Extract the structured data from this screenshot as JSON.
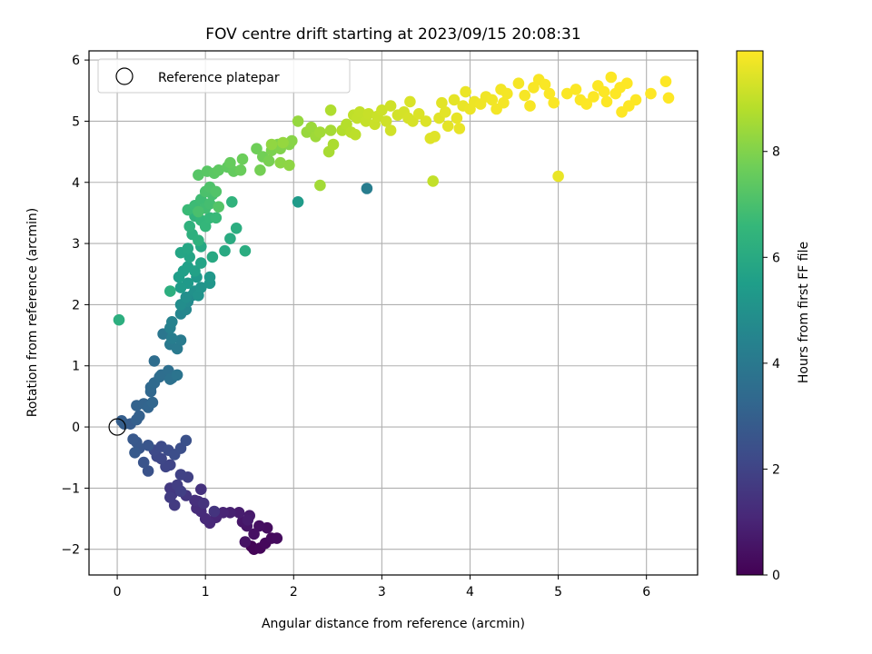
{
  "chart_data": {
    "type": "scatter",
    "title": "FOV centre drift starting at 2023/09/15 20:08:31",
    "xlabel": "Angular distance from reference (arcmin)",
    "ylabel": "Rotation from reference (arcmin)",
    "xlim": [
      -0.32,
      6.58
    ],
    "ylim": [
      -2.42,
      6.15
    ],
    "xticks": [
      0,
      1,
      2,
      3,
      4,
      5,
      6
    ],
    "xtick_labels": [
      "0",
      "1",
      "2",
      "3",
      "4",
      "5",
      "6"
    ],
    "yticks": [
      -2,
      -1,
      0,
      1,
      2,
      3,
      4,
      5,
      6
    ],
    "ytick_labels": [
      "−2",
      "−1",
      "0",
      "1",
      "2",
      "3",
      "4",
      "5",
      "6"
    ],
    "grid": true,
    "legend": {
      "placement": "top-left",
      "entries": [
        "Reference platepar"
      ]
    },
    "reference_point": {
      "x": 0,
      "y": 0,
      "marker": "open-circle"
    },
    "colorbar": {
      "label": "Hours from first FF file",
      "colormap": "viridis",
      "range": [
        0,
        9.9
      ],
      "ticks": [
        0,
        2,
        4,
        6,
        8
      ],
      "tick_labels": [
        "0",
        "2",
        "4",
        "6",
        "8"
      ]
    },
    "series": [
      {
        "points": [
          [
            1.52,
            -1.95,
            0.05
          ],
          [
            1.55,
            -2.0,
            0.1
          ],
          [
            1.62,
            -1.98,
            0.15
          ],
          [
            1.68,
            -1.9,
            0.2
          ],
          [
            1.75,
            -1.82,
            0.25
          ],
          [
            1.81,
            -1.82,
            0.3
          ],
          [
            1.7,
            -1.65,
            0.35
          ],
          [
            1.61,
            -1.62,
            0.4
          ],
          [
            1.55,
            -1.75,
            0.45
          ],
          [
            1.45,
            -1.88,
            0.5
          ],
          [
            1.47,
            -1.62,
            0.55
          ],
          [
            1.42,
            -1.55,
            0.6
          ],
          [
            1.5,
            -1.45,
            0.7
          ],
          [
            1.48,
            -1.52,
            0.75
          ],
          [
            1.38,
            -1.4,
            0.8
          ],
          [
            1.28,
            -1.4,
            0.9
          ],
          [
            1.2,
            -1.4,
            1.0
          ],
          [
            1.12,
            -1.48,
            1.05
          ],
          [
            1.05,
            -1.57,
            1.1
          ],
          [
            1.0,
            -1.5,
            1.15
          ],
          [
            0.95,
            -1.38,
            1.2
          ],
          [
            0.9,
            -1.33,
            1.25
          ],
          [
            0.92,
            -1.22,
            1.3
          ],
          [
            0.88,
            -1.2,
            1.35
          ],
          [
            0.95,
            -1.02,
            1.4
          ],
          [
            0.98,
            -1.25,
            1.45
          ],
          [
            1.1,
            -1.38,
            1.5
          ],
          [
            0.78,
            -1.12,
            1.55
          ],
          [
            0.62,
            -1.1,
            1.6
          ],
          [
            0.6,
            -1.0,
            1.65
          ],
          [
            0.65,
            -1.28,
            1.7
          ],
          [
            0.6,
            -1.15,
            1.75
          ],
          [
            0.68,
            -0.95,
            1.8
          ],
          [
            0.72,
            -1.05,
            1.85
          ],
          [
            0.8,
            -0.82,
            1.9
          ],
          [
            0.72,
            -0.78,
            1.95
          ],
          [
            0.6,
            -0.62,
            2.0
          ],
          [
            0.55,
            -0.65,
            2.05
          ],
          [
            0.5,
            -0.52,
            2.1
          ],
          [
            0.45,
            -0.48,
            2.15
          ],
          [
            0.42,
            -0.38,
            2.2
          ],
          [
            0.5,
            -0.32,
            2.25
          ],
          [
            0.58,
            -0.38,
            2.3
          ],
          [
            0.65,
            -0.45,
            2.35
          ],
          [
            0.72,
            -0.35,
            2.4
          ],
          [
            0.78,
            -0.22,
            2.45
          ],
          [
            0.35,
            -0.72,
            2.5
          ],
          [
            0.3,
            -0.58,
            2.55
          ],
          [
            0.35,
            -0.3,
            2.6
          ],
          [
            0.25,
            -0.35,
            2.65
          ],
          [
            0.22,
            -0.25,
            2.7
          ],
          [
            0.18,
            -0.2,
            2.75
          ],
          [
            0.2,
            -0.42,
            2.8
          ],
          [
            0.15,
            0.05,
            2.85
          ],
          [
            0.08,
            0.05,
            2.9
          ],
          [
            0.05,
            0.1,
            2.95
          ],
          [
            0.22,
            0.12,
            3.0
          ],
          [
            0.25,
            0.18,
            3.05
          ],
          [
            0.22,
            0.35,
            3.1
          ],
          [
            0.3,
            0.38,
            3.15
          ],
          [
            0.35,
            0.32,
            3.2
          ],
          [
            0.4,
            0.4,
            3.25
          ],
          [
            0.38,
            0.58,
            3.3
          ],
          [
            0.38,
            0.65,
            3.35
          ],
          [
            0.42,
            0.72,
            3.4
          ],
          [
            0.48,
            0.82,
            3.45
          ],
          [
            0.42,
            1.08,
            3.5
          ],
          [
            0.5,
            0.85,
            3.55
          ],
          [
            0.58,
            0.92,
            3.6
          ],
          [
            0.62,
            0.8,
            3.65
          ],
          [
            0.6,
            0.78,
            3.7
          ],
          [
            0.68,
            0.85,
            3.8
          ],
          [
            0.52,
            1.52,
            3.9
          ],
          [
            0.6,
            1.35,
            4.0
          ],
          [
            0.68,
            1.28,
            4.05
          ],
          [
            0.72,
            1.42,
            4.1
          ],
          [
            0.62,
            1.45,
            4.2
          ],
          [
            0.6,
            1.62,
            4.3
          ],
          [
            0.62,
            1.72,
            4.4
          ],
          [
            0.72,
            1.85,
            4.5
          ],
          [
            0.78,
            1.92,
            4.6
          ],
          [
            0.8,
            2.05,
            4.7
          ],
          [
            0.85,
            2.15,
            4.8
          ],
          [
            0.72,
            2.0,
            4.85
          ],
          [
            0.78,
            2.12,
            4.9
          ],
          [
            0.88,
            2.22,
            5.0
          ],
          [
            0.92,
            2.15,
            5.05
          ],
          [
            0.95,
            2.28,
            5.1
          ],
          [
            1.05,
            2.35,
            5.2
          ],
          [
            1.05,
            2.45,
            5.25
          ],
          [
            0.9,
            2.45,
            5.3
          ],
          [
            0.8,
            2.35,
            5.35
          ],
          [
            0.72,
            2.28,
            5.4
          ],
          [
            0.7,
            2.45,
            5.5
          ],
          [
            0.75,
            2.55,
            5.55
          ],
          [
            0.8,
            2.62,
            5.6
          ],
          [
            0.88,
            2.55,
            5.65
          ],
          [
            0.95,
            2.68,
            5.7
          ],
          [
            0.82,
            2.78,
            5.75
          ],
          [
            0.72,
            2.85,
            5.8
          ],
          [
            0.8,
            2.92,
            5.85
          ],
          [
            0.95,
            2.95,
            5.9
          ],
          [
            1.08,
            2.78,
            5.95
          ],
          [
            1.22,
            2.88,
            6.0
          ],
          [
            1.28,
            3.08,
            6.05
          ],
          [
            1.45,
            2.88,
            6.1
          ],
          [
            1.35,
            3.25,
            6.15
          ],
          [
            0.6,
            2.22,
            6.2
          ],
          [
            0.02,
            1.75,
            6.2
          ],
          [
            0.85,
            3.15,
            6.25
          ],
          [
            0.92,
            3.05,
            6.3
          ],
          [
            0.82,
            3.28,
            6.35
          ],
          [
            0.88,
            3.45,
            6.4
          ],
          [
            0.95,
            3.38,
            6.5
          ],
          [
            1.0,
            3.28,
            6.55
          ],
          [
            1.05,
            3.42,
            6.6
          ],
          [
            1.12,
            3.42,
            6.65
          ],
          [
            0.8,
            3.55,
            6.7
          ],
          [
            0.88,
            3.62,
            6.75
          ],
          [
            0.95,
            3.72,
            6.8
          ],
          [
            1.0,
            3.58,
            6.85
          ],
          [
            1.05,
            3.65,
            6.9
          ],
          [
            1.08,
            3.8,
            6.95
          ],
          [
            0.92,
            3.52,
            7.0
          ],
          [
            1.0,
            3.85,
            7.05
          ],
          [
            1.05,
            3.92,
            7.1
          ],
          [
            1.12,
            3.85,
            7.15
          ],
          [
            2.05,
            3.68,
            5.4
          ],
          [
            1.3,
            3.68,
            6.4
          ],
          [
            2.83,
            3.9,
            4.2
          ],
          [
            1.15,
            3.6,
            7.2
          ],
          [
            0.92,
            4.12,
            7.25
          ],
          [
            1.02,
            4.18,
            7.3
          ],
          [
            1.1,
            4.15,
            7.35
          ],
          [
            1.15,
            4.2,
            7.4
          ],
          [
            1.25,
            4.25,
            7.45
          ],
          [
            1.32,
            4.18,
            7.5
          ],
          [
            1.28,
            4.32,
            7.55
          ],
          [
            1.4,
            4.2,
            7.6
          ],
          [
            1.42,
            4.38,
            7.65
          ],
          [
            1.58,
            4.55,
            7.7
          ],
          [
            1.65,
            4.42,
            7.75
          ],
          [
            1.62,
            4.2,
            7.8
          ],
          [
            1.72,
            4.35,
            7.85
          ],
          [
            1.75,
            4.52,
            7.9
          ],
          [
            1.82,
            4.62,
            7.95
          ],
          [
            1.85,
            4.55,
            8.0
          ],
          [
            1.95,
            4.62,
            8.05
          ],
          [
            1.98,
            4.68,
            8.1
          ],
          [
            1.85,
            4.32,
            8.15
          ],
          [
            1.95,
            4.28,
            8.2
          ],
          [
            1.75,
            4.62,
            8.25
          ],
          [
            1.88,
            4.65,
            8.3
          ],
          [
            2.05,
            5.0,
            8.3
          ],
          [
            2.15,
            4.82,
            8.35
          ],
          [
            2.2,
            4.9,
            8.4
          ],
          [
            2.25,
            4.75,
            8.45
          ],
          [
            2.3,
            4.82,
            8.5
          ],
          [
            2.42,
            4.85,
            8.55
          ],
          [
            2.4,
            4.5,
            8.6
          ],
          [
            2.45,
            4.62,
            8.65
          ],
          [
            2.3,
            3.95,
            8.5
          ],
          [
            2.42,
            5.18,
            8.7
          ],
          [
            2.55,
            4.85,
            8.75
          ],
          [
            2.6,
            4.95,
            8.8
          ],
          [
            2.65,
            4.82,
            8.85
          ],
          [
            2.7,
            4.78,
            8.9
          ],
          [
            2.68,
            5.1,
            8.95
          ],
          [
            2.72,
            5.05,
            9.0
          ],
          [
            2.75,
            5.15,
            9.02
          ],
          [
            2.82,
            5.0,
            9.05
          ],
          [
            2.85,
            5.12,
            9.08
          ],
          [
            2.92,
            4.95,
            9.1
          ],
          [
            2.95,
            5.08,
            9.12
          ],
          [
            3.0,
            5.18,
            9.15
          ],
          [
            3.05,
            5.0,
            9.18
          ],
          [
            3.1,
            5.25,
            9.2
          ],
          [
            3.1,
            4.85,
            9.22
          ],
          [
            3.18,
            5.1,
            9.25
          ],
          [
            3.25,
            5.15,
            9.28
          ],
          [
            3.3,
            5.05,
            9.3
          ],
          [
            3.35,
            5.0,
            9.32
          ],
          [
            3.32,
            5.32,
            9.35
          ],
          [
            3.42,
            5.12,
            9.38
          ],
          [
            3.5,
            5.0,
            9.4
          ],
          [
            3.55,
            4.72,
            9.42
          ],
          [
            3.6,
            4.75,
            9.44
          ],
          [
            3.58,
            4.02,
            9.0
          ],
          [
            3.65,
            5.05,
            9.46
          ],
          [
            3.68,
            5.3,
            9.48
          ],
          [
            3.72,
            5.15,
            9.5
          ],
          [
            3.75,
            4.92,
            9.52
          ],
          [
            3.82,
            5.35,
            9.54
          ],
          [
            3.85,
            5.05,
            9.56
          ],
          [
            3.88,
            4.88,
            9.58
          ],
          [
            3.92,
            5.25,
            9.6
          ],
          [
            3.95,
            5.48,
            9.62
          ],
          [
            4.0,
            5.2,
            9.64
          ],
          [
            4.05,
            5.32,
            9.66
          ],
          [
            4.12,
            5.28,
            9.68
          ],
          [
            4.18,
            5.4,
            9.7
          ],
          [
            4.25,
            5.35,
            9.72
          ],
          [
            4.3,
            5.2,
            9.74
          ],
          [
            4.35,
            5.52,
            9.75
          ],
          [
            4.38,
            5.3,
            9.76
          ],
          [
            4.42,
            5.45,
            9.77
          ],
          [
            4.55,
            5.62,
            9.78
          ],
          [
            4.62,
            5.42,
            9.8
          ],
          [
            4.68,
            5.25,
            9.81
          ],
          [
            4.72,
            5.55,
            9.82
          ],
          [
            4.78,
            5.68,
            9.83
          ],
          [
            4.85,
            5.6,
            9.84
          ],
          [
            4.9,
            5.45,
            9.85
          ],
          [
            4.95,
            5.3,
            9.86
          ],
          [
            5.0,
            4.1,
            9.6
          ],
          [
            5.1,
            5.45,
            9.86
          ],
          [
            5.2,
            5.52,
            9.87
          ],
          [
            5.25,
            5.35,
            9.87
          ],
          [
            5.32,
            5.28,
            9.88
          ],
          [
            5.4,
            5.4,
            9.88
          ],
          [
            5.45,
            5.58,
            9.88
          ],
          [
            5.52,
            5.48,
            9.89
          ],
          [
            5.55,
            5.32,
            9.89
          ],
          [
            5.6,
            5.72,
            9.89
          ],
          [
            5.65,
            5.45,
            9.9
          ],
          [
            5.7,
            5.55,
            9.9
          ],
          [
            5.72,
            5.15,
            9.9
          ],
          [
            5.78,
            5.62,
            9.9
          ],
          [
            5.8,
            5.25,
            9.9
          ],
          [
            5.88,
            5.35,
            9.9
          ],
          [
            6.05,
            5.45,
            9.9
          ],
          [
            6.22,
            5.65,
            9.9
          ],
          [
            6.25,
            5.38,
            9.9
          ]
        ]
      }
    ]
  }
}
